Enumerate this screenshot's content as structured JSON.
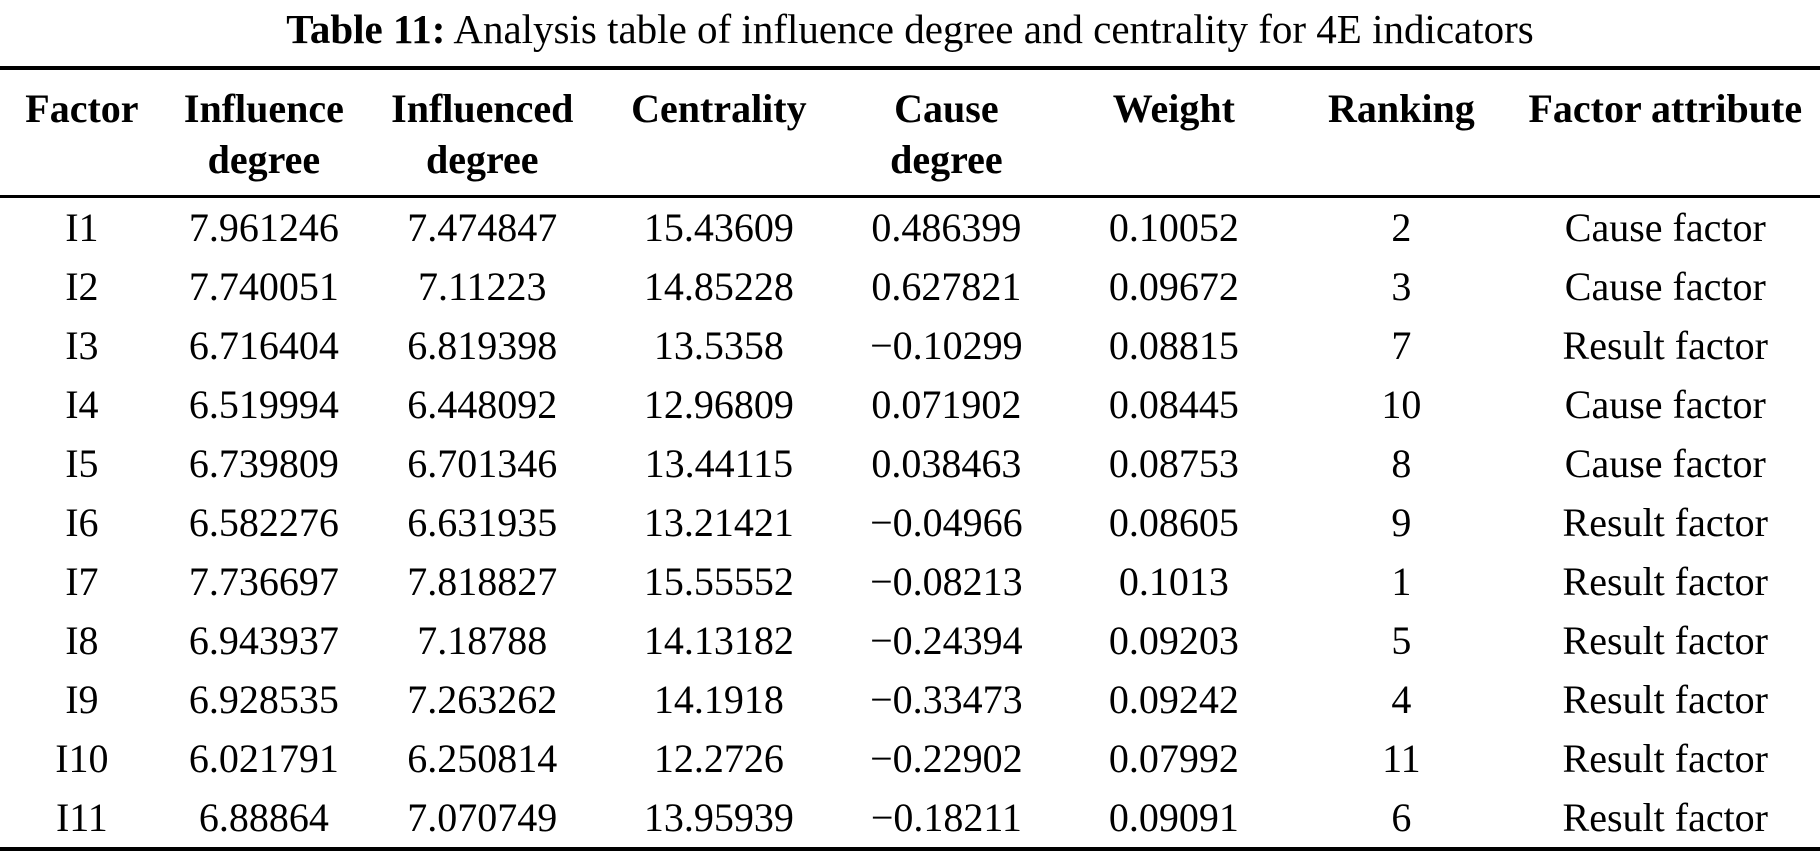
{
  "caption": {
    "label": "Table 11:",
    "text": " Analysis table of influence degree and centrality for 4E indicators"
  },
  "table": {
    "columns": [
      "Factor",
      "Influence degree",
      "Influenced degree",
      "Centrality",
      "Cause degree",
      "Weight",
      "Ranking",
      "Factor attribute"
    ],
    "rows": [
      [
        "I1",
        "7.961246",
        "7.474847",
        "15.43609",
        "0.486399",
        "0.10052",
        "2",
        "Cause factor"
      ],
      [
        "I2",
        "7.740051",
        "7.11223",
        "14.85228",
        "0.627821",
        "0.09672",
        "3",
        "Cause factor"
      ],
      [
        "I3",
        "6.716404",
        "6.819398",
        "13.5358",
        "−0.10299",
        "0.08815",
        "7",
        "Result factor"
      ],
      [
        "I4",
        "6.519994",
        "6.448092",
        "12.96809",
        "0.071902",
        "0.08445",
        "10",
        "Cause factor"
      ],
      [
        "I5",
        "6.739809",
        "6.701346",
        "13.44115",
        "0.038463",
        "0.08753",
        "8",
        "Cause factor"
      ],
      [
        "I6",
        "6.582276",
        "6.631935",
        "13.21421",
        "−0.04966",
        "0.08605",
        "9",
        "Result factor"
      ],
      [
        "I7",
        "7.736697",
        "7.818827",
        "15.55552",
        "−0.08213",
        "0.1013",
        "1",
        "Result factor"
      ],
      [
        "I8",
        "6.943937",
        "7.18788",
        "14.13182",
        "−0.24394",
        "0.09203",
        "5",
        "Result factor"
      ],
      [
        "I9",
        "6.928535",
        "7.263262",
        "14.1918",
        "−0.33473",
        "0.09242",
        "4",
        "Result factor"
      ],
      [
        "I10",
        "6.021791",
        "6.250814",
        "12.2726",
        "−0.22902",
        "0.07992",
        "11",
        "Result factor"
      ],
      [
        "I11",
        "6.88864",
        "7.070749",
        "13.95939",
        "−0.18211",
        "0.09091",
        "6",
        "Result factor"
      ]
    ]
  },
  "colors": {
    "text": "#000000",
    "background": "#ffffff",
    "rule": "#000000"
  }
}
